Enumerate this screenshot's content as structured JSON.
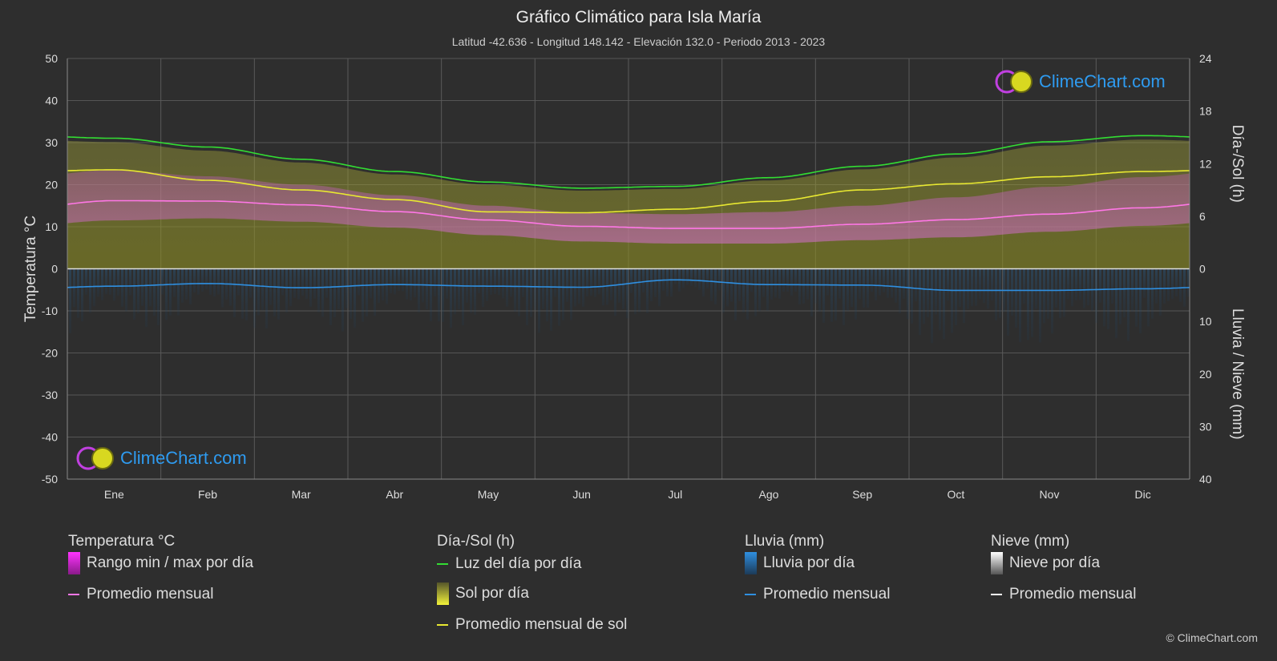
{
  "header": {
    "title": "Gráfico Climático para Isla María",
    "subtitle": "Latitud -42.636 - Longitud 148.142 - Elevación 132.0 - Periodo 2013 - 2023"
  },
  "logo": {
    "text": "ClimeChart.com"
  },
  "copyright": "© ClimeChart.com",
  "colors": {
    "background": "#2e2e2e",
    "daylight": "#33dd33",
    "sunshine_avg": "#e8e831",
    "sunshine_fill": "#8f8f2a",
    "temp_avg": "#ff77e6",
    "temp_range": "#d64fc8",
    "rain_avg": "#2f8fe0",
    "rain_fill": "#1f4f78",
    "snow_avg": "#ffffff"
  },
  "legend": {
    "temperature": {
      "heading": "Temperatura °C",
      "range_label": "Rango min / max por día",
      "avg_label": "Promedio mensual"
    },
    "sun": {
      "heading": "Día-/Sol (h)",
      "daylight_label": "Luz del día por día",
      "sun_label": "Sol por día",
      "sun_avg_label": "Promedio mensual de sol"
    },
    "rain": {
      "heading": "Lluvia (mm)",
      "rain_label": "Lluvia por día",
      "avg_label": "Promedio mensual"
    },
    "snow": {
      "heading": "Nieve (mm)",
      "snow_label": "Nieve por día",
      "avg_label": "Promedio mensual"
    }
  },
  "chart_data": {
    "type": "line",
    "x_categories": [
      "Ene",
      "Feb",
      "Mar",
      "Abr",
      "May",
      "Jun",
      "Jul",
      "Ago",
      "Sep",
      "Oct",
      "Nov",
      "Dic"
    ],
    "y_left": {
      "label": "Temperatura °C",
      "range": [
        -50,
        50
      ],
      "ticks": [
        50,
        40,
        30,
        20,
        10,
        0,
        -10,
        -20,
        -30,
        -40,
        -50
      ]
    },
    "y_right_top": {
      "label": "Día-/Sol (h)",
      "range": [
        0,
        24
      ],
      "ticks": [
        24,
        18,
        12,
        6,
        0
      ]
    },
    "y_right_bottom": {
      "label": "Lluvia / Nieve (mm)",
      "range": [
        0,
        40
      ],
      "ticks": [
        0,
        10,
        20,
        30,
        40
      ]
    },
    "grid": true,
    "series": [
      {
        "name": "Luz del día por día",
        "axis": "sun_h",
        "values": [
          14.9,
          13.9,
          12.5,
          11.1,
          9.9,
          9.2,
          9.4,
          10.4,
          11.7,
          13.1,
          14.5,
          15.2
        ]
      },
      {
        "name": "Promedio mensual de sol",
        "axis": "sun_h",
        "values": [
          11.3,
          10.1,
          9.0,
          7.9,
          6.5,
          6.4,
          6.8,
          7.7,
          9.0,
          9.7,
          10.5,
          11.1
        ]
      },
      {
        "name": "Promedio mensual",
        "axis": "temp_c",
        "values": [
          16.2,
          16.1,
          15.2,
          13.6,
          11.6,
          10.1,
          9.6,
          9.6,
          10.6,
          11.7,
          13.0,
          14.5
        ]
      },
      {
        "name": "Promedio mensual",
        "axis": "rain_mm",
        "values": [
          3.3,
          2.8,
          3.6,
          3.0,
          3.3,
          3.5,
          2.1,
          3.0,
          3.1,
          4.1,
          4.1,
          3.8
        ]
      },
      {
        "name": "Rango min / max por día",
        "axis": "temp_c",
        "min": [
          11.5,
          12.0,
          11.2,
          9.8,
          8.0,
          6.5,
          6.0,
          6.0,
          6.8,
          7.5,
          8.8,
          10.2
        ],
        "max": [
          23.5,
          22.0,
          20.0,
          17.5,
          15.0,
          13.3,
          13.0,
          13.5,
          15.0,
          17.0,
          19.5,
          21.8
        ]
      }
    ]
  }
}
